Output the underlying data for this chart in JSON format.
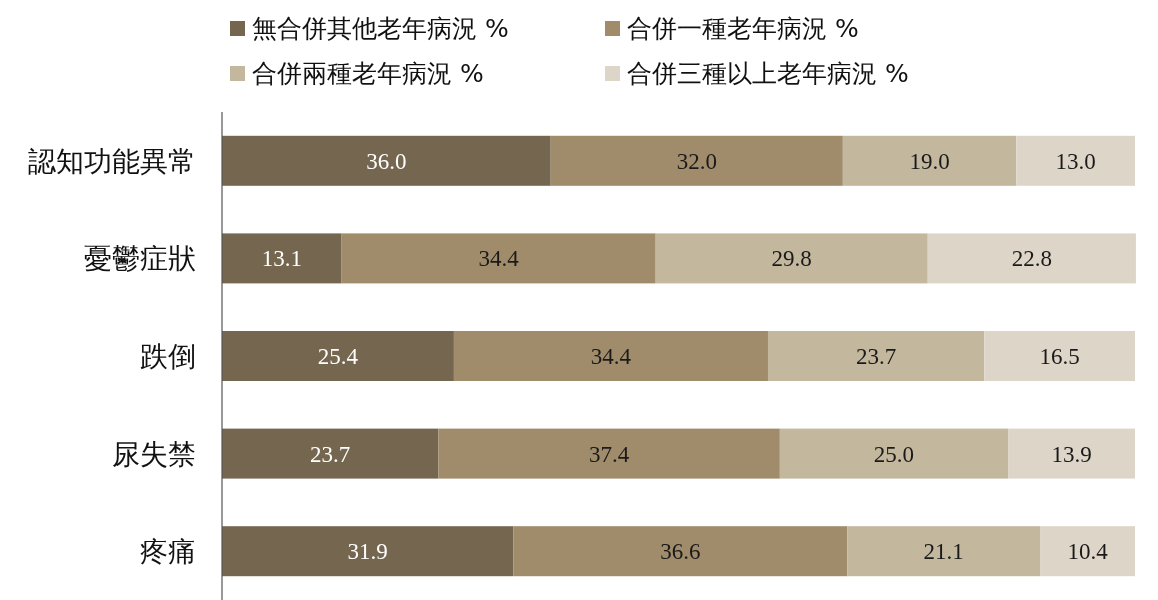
{
  "chart_data": {
    "type": "bar",
    "orientation": "horizontal",
    "stacked": true,
    "legend": "top",
    "tick_labels": "y",
    "xlim": [
      0,
      100
    ],
    "categories": [
      "認知功能異常",
      "憂鬱症狀",
      "跌倒",
      "尿失禁",
      "疼痛"
    ],
    "series": [
      {
        "name": "無合併其他老年病況 %",
        "color": "#756650",
        "values": [
          36.0,
          13.1,
          25.4,
          23.7,
          31.9
        ],
        "value_labels": [
          "36.0",
          "13.1",
          "25.4",
          "23.7",
          "31.9"
        ]
      },
      {
        "name": "合併一種老年病況 %",
        "color": "#a08c6b",
        "values": [
          32.0,
          34.4,
          34.4,
          37.4,
          36.6
        ],
        "value_labels": [
          "32.0",
          "34.4",
          "34.4",
          "37.4",
          "36.6"
        ]
      },
      {
        "name": "合併兩種老年病況 %",
        "color": "#c3b79d",
        "values": [
          19.0,
          29.8,
          23.7,
          25.0,
          21.1
        ],
        "value_labels": [
          "19.0",
          "29.8",
          "23.7",
          "25.0",
          "21.1"
        ]
      },
      {
        "name": "合併三種以上老年病況 %",
        "color": "#ddd5c8",
        "values": [
          13.0,
          22.8,
          16.5,
          13.9,
          10.4
        ],
        "value_labels": [
          "13.0",
          "22.8",
          "16.5",
          "13.9",
          "10.4"
        ]
      }
    ]
  }
}
